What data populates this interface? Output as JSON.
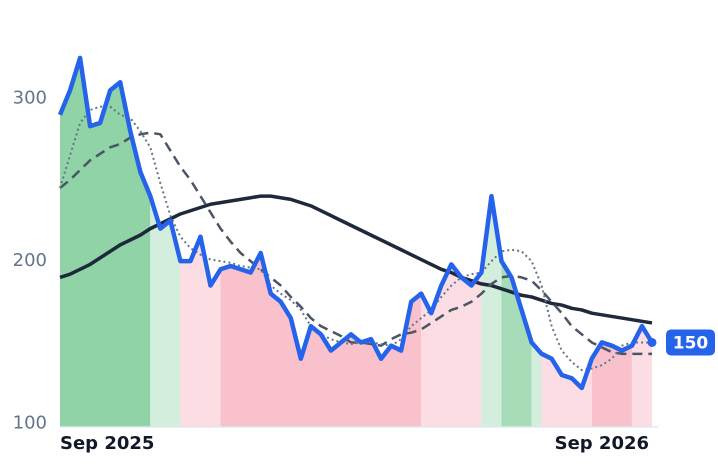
{
  "chart_data": {
    "type": "line",
    "categories": [
      "Sep 2025",
      null,
      null,
      null,
      null,
      null,
      null,
      null,
      null,
      null,
      null,
      null,
      null,
      null,
      null,
      null,
      null,
      null,
      null,
      null,
      null,
      null,
      null,
      null,
      null,
      null,
      null,
      null,
      null,
      null,
      null,
      null,
      null,
      null,
      null,
      null,
      null,
      null,
      null,
      null,
      null,
      null,
      null,
      null,
      null,
      null,
      null,
      null,
      null,
      null,
      null,
      null,
      null,
      null,
      "Sep 2026",
      null,
      null,
      null,
      null,
      null
    ],
    "series": [
      {
        "color": "#1e293b",
        "style": "solid",
        "width": 3.5,
        "values": [
          190,
          192,
          195,
          198,
          202,
          206,
          210,
          213,
          216,
          220,
          223,
          226,
          229,
          231,
          233,
          235,
          236,
          237,
          238,
          239,
          240,
          240,
          239,
          238,
          236,
          234,
          231,
          228,
          225,
          222,
          219,
          216,
          213,
          210,
          207,
          204,
          201,
          198,
          195,
          193,
          190,
          188,
          186,
          185,
          183,
          181,
          179,
          178,
          176,
          174,
          173,
          171,
          170,
          168,
          167,
          166,
          165,
          164,
          163,
          162
        ]
      },
      {
        "color": "#4b5563",
        "style": "dashed",
        "width": 2.5,
        "values": [
          245,
          250,
          256,
          262,
          266,
          270,
          272,
          276,
          278,
          279,
          278,
          268,
          258,
          250,
          240,
          230,
          220,
          212,
          205,
          200,
          195,
          190,
          185,
          178,
          172,
          165,
          160,
          157,
          154,
          150,
          150,
          149,
          148,
          152,
          155,
          156,
          158,
          162,
          166,
          170,
          172,
          175,
          180,
          186,
          190,
          191,
          190,
          188,
          182,
          175,
          168,
          160,
          155,
          150,
          147,
          144,
          143,
          143,
          143,
          143
        ]
      },
      {
        "color": "#64748b",
        "style": "dotted",
        "width": 2,
        "values": [
          245,
          265,
          285,
          293,
          295,
          295,
          290,
          288,
          280,
          270,
          248,
          228,
          215,
          208,
          204,
          201,
          200,
          199,
          197,
          196,
          195,
          185,
          180,
          176,
          170,
          160,
          155,
          152,
          150,
          149,
          150,
          150,
          149,
          148,
          152,
          160,
          165,
          170,
          178,
          185,
          190,
          192,
          193,
          200,
          206,
          207,
          206,
          200,
          185,
          160,
          145,
          138,
          133,
          134,
          136,
          140,
          148,
          150,
          150,
          150
        ]
      },
      {
        "color": "#2563eb",
        "style": "solid",
        "width": 4.5,
        "values": [
          290,
          305,
          325,
          283,
          285,
          305,
          310,
          280,
          255,
          240,
          220,
          225,
          200,
          200,
          215,
          185,
          195,
          197,
          195,
          193,
          205,
          180,
          175,
          165,
          140,
          160,
          155,
          145,
          150,
          155,
          150,
          152,
          140,
          148,
          145,
          175,
          180,
          168,
          185,
          198,
          190,
          185,
          193,
          240,
          200,
          190,
          170,
          150,
          143,
          140,
          130,
          128,
          122,
          140,
          150,
          148,
          145,
          148,
          160,
          150
        ]
      }
    ],
    "bands": [
      {
        "from": 0,
        "to": 9,
        "color": "#8fd3a6"
      },
      {
        "from": 9,
        "to": 12,
        "color": "#d3eedc"
      },
      {
        "from": 12,
        "to": 16,
        "color": "#fcdde3"
      },
      {
        "from": 16,
        "to": 36,
        "color": "#f9c1cc"
      },
      {
        "from": 36,
        "to": 42,
        "color": "#fcdde3"
      },
      {
        "from": 42,
        "to": 44,
        "color": "#d3eedc"
      },
      {
        "from": 44,
        "to": 47,
        "color": "#a6dcb8"
      },
      {
        "from": 47,
        "to": 48,
        "color": "#d3eedc"
      },
      {
        "from": 48,
        "to": 53,
        "color": "#fcdde3"
      },
      {
        "from": 53,
        "to": 57,
        "color": "#f9c1cc"
      },
      {
        "from": 57,
        "to": 59,
        "color": "#fcdde3"
      }
    ],
    "ylim": [
      98,
      336
    ],
    "yticks": [
      100,
      200,
      300
    ]
  }
}
